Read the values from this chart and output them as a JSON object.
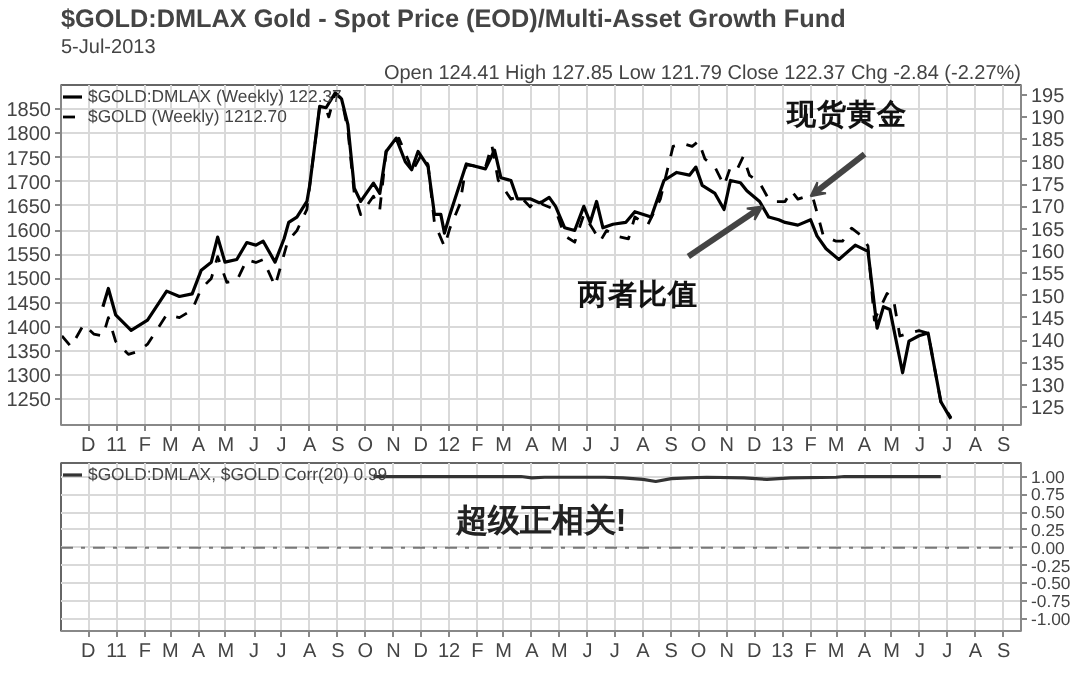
{
  "chart_data": [
    {
      "type": "line",
      "title": "$GOLD:DMLAX Gold - Spot Price (EOD)/Multi-Asset Growth Fund",
      "subtitle": "5-Jul-2013",
      "annotations": [
        "Open 124.41 High 127.85 Low 121.79 Close 122.37 Chg -2.84 (-2.27%)",
        {
          "text": "现货黄金",
          "x": "2013-02-01",
          "y": 1670
        },
        {
          "text": "两者比值",
          "x": "2012-12-10",
          "y": 1649
        }
      ],
      "xlim": [
        "2010-11-01",
        "2013-09-20"
      ],
      "xticks": [
        {
          "value": "2010-12-01",
          "label": "D"
        },
        {
          "value": "2011-01-01",
          "label": "11"
        },
        {
          "value": "2011-02-01",
          "label": "F"
        },
        {
          "value": "2011-03-01",
          "label": "M"
        },
        {
          "value": "2011-04-01",
          "label": "A"
        },
        {
          "value": "2011-05-01",
          "label": "M"
        },
        {
          "value": "2011-06-01",
          "label": "J"
        },
        {
          "value": "2011-07-01",
          "label": "J"
        },
        {
          "value": "2011-08-01",
          "label": "A"
        },
        {
          "value": "2011-09-01",
          "label": "S"
        },
        {
          "value": "2011-10-01",
          "label": "O"
        },
        {
          "value": "2011-11-01",
          "label": "N"
        },
        {
          "value": "2011-12-01",
          "label": "D"
        },
        {
          "value": "2012-01-01",
          "label": "12"
        },
        {
          "value": "2012-02-01",
          "label": "F"
        },
        {
          "value": "2012-03-01",
          "label": "M"
        },
        {
          "value": "2012-04-01",
          "label": "A"
        },
        {
          "value": "2012-05-01",
          "label": "M"
        },
        {
          "value": "2012-06-01",
          "label": "J"
        },
        {
          "value": "2012-07-01",
          "label": "J"
        },
        {
          "value": "2012-08-01",
          "label": "A"
        },
        {
          "value": "2012-09-01",
          "label": "S"
        },
        {
          "value": "2012-10-01",
          "label": "O"
        },
        {
          "value": "2012-11-01",
          "label": "N"
        },
        {
          "value": "2012-12-01",
          "label": "D"
        },
        {
          "value": "2013-01-01",
          "label": "13"
        },
        {
          "value": "2013-02-01",
          "label": "F"
        },
        {
          "value": "2013-03-01",
          "label": "M"
        },
        {
          "value": "2013-04-01",
          "label": "A"
        },
        {
          "value": "2013-05-01",
          "label": "M"
        },
        {
          "value": "2013-06-01",
          "label": "J"
        },
        {
          "value": "2013-07-01",
          "label": "J"
        },
        {
          "value": "2013-08-01",
          "label": "A"
        },
        {
          "value": "2013-09-01",
          "label": "S"
        }
      ],
      "ylim": [
        1197,
        1900
      ],
      "yticks": [
        1250,
        1300,
        1350,
        1400,
        1450,
        1500,
        1550,
        1600,
        1650,
        1700,
        1750,
        1800,
        1850
      ],
      "y2lim": [
        121,
        197.2
      ],
      "y2ticks": [
        125,
        130,
        135,
        140,
        145,
        150,
        155,
        160,
        165,
        170,
        175,
        180,
        185,
        190,
        195
      ],
      "grid": true,
      "legend": "top left",
      "series": [
        {
          "name": "$GOLD:DMLAX (Weekly) 122.37",
          "color": "#000000",
          "axis": "y2",
          "line_style": "solid",
          "x": [
            "2010-12-17",
            "2010-12-23",
            "2010-12-31",
            "2011-01-17",
            "2011-02-04",
            "2011-02-25",
            "2011-03-11",
            "2011-03-25",
            "2011-04-04",
            "2011-04-15",
            "2011-04-22",
            "2011-04-30",
            "2011-05-13",
            "2011-05-24",
            "2011-06-03",
            "2011-06-11",
            "2011-06-24",
            "2011-07-04",
            "2011-07-09",
            "2011-07-18",
            "2011-07-29",
            "2011-08-01",
            "2011-08-12",
            "2011-08-19",
            "2011-08-29",
            "2011-09-05",
            "2011-09-12",
            "2011-09-19",
            "2011-09-26",
            "2011-10-10",
            "2011-10-17",
            "2011-10-24",
            "2011-11-04",
            "2011-11-14",
            "2011-11-21",
            "2011-11-28",
            "2011-12-09",
            "2011-12-16",
            "2011-12-23",
            "2011-12-27",
            "2012-01-02",
            "2012-01-20",
            "2012-02-10",
            "2012-02-20",
            "2012-02-27",
            "2012-03-09",
            "2012-03-16",
            "2012-03-30",
            "2012-04-09",
            "2012-04-13",
            "2012-04-20",
            "2012-04-27",
            "2012-05-07",
            "2012-05-18",
            "2012-05-28",
            "2012-06-04",
            "2012-06-11",
            "2012-06-18",
            "2012-06-29",
            "2012-07-13",
            "2012-07-23",
            "2012-08-10",
            "2012-08-24",
            "2012-09-07",
            "2012-09-21",
            "2012-09-28",
            "2012-10-05",
            "2012-10-19",
            "2012-10-29",
            "2012-11-05",
            "2012-11-16",
            "2012-11-23",
            "2012-12-07",
            "2012-12-17",
            "2012-12-28",
            "2013-01-04",
            "2013-01-18",
            "2013-02-01",
            "2013-02-08",
            "2013-02-18",
            "2013-03-04",
            "2013-03-22",
            "2013-04-05",
            "2013-04-15",
            "2013-04-22",
            "2013-04-29",
            "2013-05-13",
            "2013-05-20",
            "2013-05-31",
            "2013-06-10",
            "2013-06-17",
            "2013-06-24",
            "2013-07-05"
          ],
          "values": [
            147.5,
            151.6,
            145.7,
            142.2,
            144.5,
            151.0,
            149.8,
            150.4,
            155.7,
            157.5,
            163.1,
            157.5,
            158.1,
            161.9,
            161.3,
            162.2,
            157.5,
            162.8,
            166.4,
            167.6,
            171.1,
            174.6,
            192.4,
            192.1,
            195.4,
            194.1,
            188.3,
            174.1,
            171.1,
            175.2,
            172.9,
            182.3,
            185.3,
            180.0,
            178.2,
            182.3,
            178.9,
            168.2,
            168.2,
            164.0,
            168.2,
            179.5,
            178.4,
            182.6,
            176.4,
            175.8,
            171.7,
            171.7,
            170.8,
            171.1,
            172.0,
            170.0,
            165.2,
            164.6,
            170.0,
            166.4,
            171.1,
            165.2,
            166.0,
            166.4,
            168.8,
            167.6,
            175.8,
            177.6,
            177.0,
            178.8,
            174.7,
            172.9,
            169.3,
            175.8,
            175.3,
            173.5,
            171.1,
            167.6,
            167.0,
            166.4,
            165.8,
            167.0,
            163.4,
            160.5,
            158.1,
            161.3,
            159.9,
            142.7,
            147.5,
            146.9,
            132.7,
            139.8,
            141.0,
            141.6,
            133.9,
            126.2,
            122.37
          ]
        },
        {
          "name": "$GOLD (Weekly) 1212.70",
          "color": "#000000",
          "line_style": "dashed",
          "x": [
            "2010-11-02",
            "2010-11-12",
            "2010-11-26",
            "2010-12-07",
            "2010-12-17",
            "2010-12-23",
            "2010-12-31",
            "2011-01-14",
            "2011-01-24",
            "2011-02-04",
            "2011-02-25",
            "2011-03-11",
            "2011-03-25",
            "2011-04-04",
            "2011-04-15",
            "2011-04-22",
            "2011-05-02",
            "2011-05-13",
            "2011-05-24",
            "2011-06-03",
            "2011-06-11",
            "2011-06-24",
            "2011-07-08",
            "2011-07-18",
            "2011-07-29",
            "2011-08-01",
            "2011-08-12",
            "2011-08-19",
            "2011-08-22",
            "2011-08-29",
            "2011-09-05",
            "2011-09-12",
            "2011-09-19",
            "2011-09-26",
            "2011-10-10",
            "2011-10-17",
            "2011-10-24",
            "2011-11-07",
            "2011-11-18",
            "2011-11-21",
            "2011-12-02",
            "2011-12-09",
            "2011-12-16",
            "2011-12-27",
            "2012-01-02",
            "2012-01-13",
            "2012-01-20",
            "2012-02-10",
            "2012-02-17",
            "2012-02-24",
            "2012-03-09",
            "2012-03-19",
            "2012-03-30",
            "2012-04-06",
            "2012-04-13",
            "2012-04-27",
            "2012-05-07",
            "2012-05-18",
            "2012-05-28",
            "2012-06-08",
            "2012-06-15",
            "2012-06-22",
            "2012-07-06",
            "2012-07-16",
            "2012-07-23",
            "2012-08-06",
            "2012-08-20",
            "2012-09-03",
            "2012-09-14",
            "2012-09-24",
            "2012-10-01",
            "2012-10-08",
            "2012-10-19",
            "2012-10-29",
            "2012-11-05",
            "2012-11-12",
            "2012-11-19",
            "2012-11-26",
            "2012-12-07",
            "2012-12-17",
            "2012-12-24",
            "2013-01-04",
            "2013-01-11",
            "2013-01-18",
            "2013-01-28",
            "2013-02-04",
            "2013-02-15",
            "2013-03-01",
            "2013-03-08",
            "2013-03-18",
            "2013-03-29",
            "2013-04-05",
            "2013-04-12",
            "2013-04-26",
            "2013-05-03",
            "2013-05-10",
            "2013-05-20",
            "2013-05-31",
            "2013-06-10",
            "2013-06-17",
            "2013-06-24",
            "2013-07-05"
          ],
          "values": [
            1381,
            1359,
            1405,
            1385,
            1381,
            1419,
            1370,
            1343,
            1349,
            1364,
            1425,
            1419,
            1435,
            1479,
            1500,
            1545,
            1492,
            1495,
            1539,
            1533,
            1539,
            1484,
            1577,
            1599,
            1643,
            1692,
            1855,
            1850,
            1834,
            1883,
            1872,
            1806,
            1675,
            1632,
            1670,
            1643,
            1763,
            1790,
            1741,
            1719,
            1757,
            1735,
            1615,
            1566,
            1604,
            1654,
            1735,
            1730,
            1776,
            1703,
            1664,
            1670,
            1648,
            1664,
            1653,
            1642,
            1588,
            1575,
            1632,
            1599,
            1577,
            1599,
            1586,
            1582,
            1627,
            1610,
            1664,
            1773,
            1779,
            1773,
            1784,
            1747,
            1730,
            1692,
            1730,
            1724,
            1752,
            1713,
            1698,
            1664,
            1659,
            1659,
            1681,
            1664,
            1670,
            1664,
            1588,
            1577,
            1577,
            1604,
            1588,
            1567,
            1414,
            1469,
            1457,
            1381,
            1387,
            1392,
            1387,
            1316,
            1245,
            1212.7
          ]
        }
      ]
    },
    {
      "type": "line",
      "annotations": [
        "超级正相关!"
      ],
      "xlim": [
        "2010-11-01",
        "2013-09-20"
      ],
      "xticks": [
        {
          "value": "2010-12-01",
          "label": "D"
        },
        {
          "value": "2011-01-01",
          "label": "11"
        },
        {
          "value": "2011-02-01",
          "label": "F"
        },
        {
          "value": "2011-03-01",
          "label": "M"
        },
        {
          "value": "2011-04-01",
          "label": "A"
        },
        {
          "value": "2011-05-01",
          "label": "M"
        },
        {
          "value": "2011-06-01",
          "label": "J"
        },
        {
          "value": "2011-07-01",
          "label": "J"
        },
        {
          "value": "2011-08-01",
          "label": "A"
        },
        {
          "value": "2011-09-01",
          "label": "S"
        },
        {
          "value": "2011-10-01",
          "label": "O"
        },
        {
          "value": "2011-11-01",
          "label": "N"
        },
        {
          "value": "2011-12-01",
          "label": "D"
        },
        {
          "value": "2012-01-01",
          "label": "12"
        },
        {
          "value": "2012-02-01",
          "label": "F"
        },
        {
          "value": "2012-03-01",
          "label": "M"
        },
        {
          "value": "2012-04-01",
          "label": "A"
        },
        {
          "value": "2012-05-01",
          "label": "M"
        },
        {
          "value": "2012-06-01",
          "label": "J"
        },
        {
          "value": "2012-07-01",
          "label": "J"
        },
        {
          "value": "2012-08-01",
          "label": "A"
        },
        {
          "value": "2012-09-01",
          "label": "S"
        },
        {
          "value": "2012-10-01",
          "label": "O"
        },
        {
          "value": "2012-11-01",
          "label": "N"
        },
        {
          "value": "2012-12-01",
          "label": "D"
        },
        {
          "value": "2013-01-01",
          "label": "13"
        },
        {
          "value": "2013-02-01",
          "label": "F"
        },
        {
          "value": "2013-03-01",
          "label": "M"
        },
        {
          "value": "2013-04-01",
          "label": "A"
        },
        {
          "value": "2013-05-01",
          "label": "M"
        },
        {
          "value": "2013-06-01",
          "label": "J"
        },
        {
          "value": "2013-07-01",
          "label": "J"
        },
        {
          "value": "2013-08-01",
          "label": "A"
        },
        {
          "value": "2013-09-01",
          "label": "S"
        }
      ],
      "ylim": [
        -1.17,
        1.19
      ],
      "yticks": [
        {
          "value": 1,
          "label": "1.00"
        },
        {
          "value": 0.75,
          "label": "0.75"
        },
        {
          "value": 0.5,
          "label": "0.50"
        },
        {
          "value": 0.25,
          "label": "0.25"
        },
        {
          "value": 0,
          "label": "0.00"
        },
        {
          "value": -0.25,
          "label": "-0.25"
        },
        {
          "value": -0.5,
          "label": "-0.50"
        },
        {
          "value": -0.75,
          "label": "-0.75"
        },
        {
          "value": -1,
          "label": "-1.00"
        }
      ],
      "grid": true,
      "legend": "top left",
      "ref_lines": [
        {
          "axis": "y",
          "value": 0,
          "color": "#777777",
          "line_style": "dashdot"
        }
      ],
      "series": [
        {
          "name": "$GOLD:DMLAX, $GOLD Corr(20) 0.99",
          "color": "#333333",
          "x": [
            "2011-10-10",
            "2012-03-20",
            "2012-04-01",
            "2012-04-15",
            "2012-06-20",
            "2012-07-10",
            "2012-08-01",
            "2012-08-15",
            "2012-09-01",
            "2012-09-20",
            "2012-10-10",
            "2012-11-20",
            "2012-12-15",
            "2013-01-10",
            "2013-03-01",
            "2013-03-10",
            "2013-06-24"
          ],
          "values": [
            1.0,
            1.0,
            0.98,
            0.99,
            0.99,
            0.98,
            0.96,
            0.93,
            0.97,
            0.98,
            0.99,
            0.98,
            0.96,
            0.98,
            0.99,
            1.0,
            1.0
          ]
        }
      ]
    }
  ]
}
